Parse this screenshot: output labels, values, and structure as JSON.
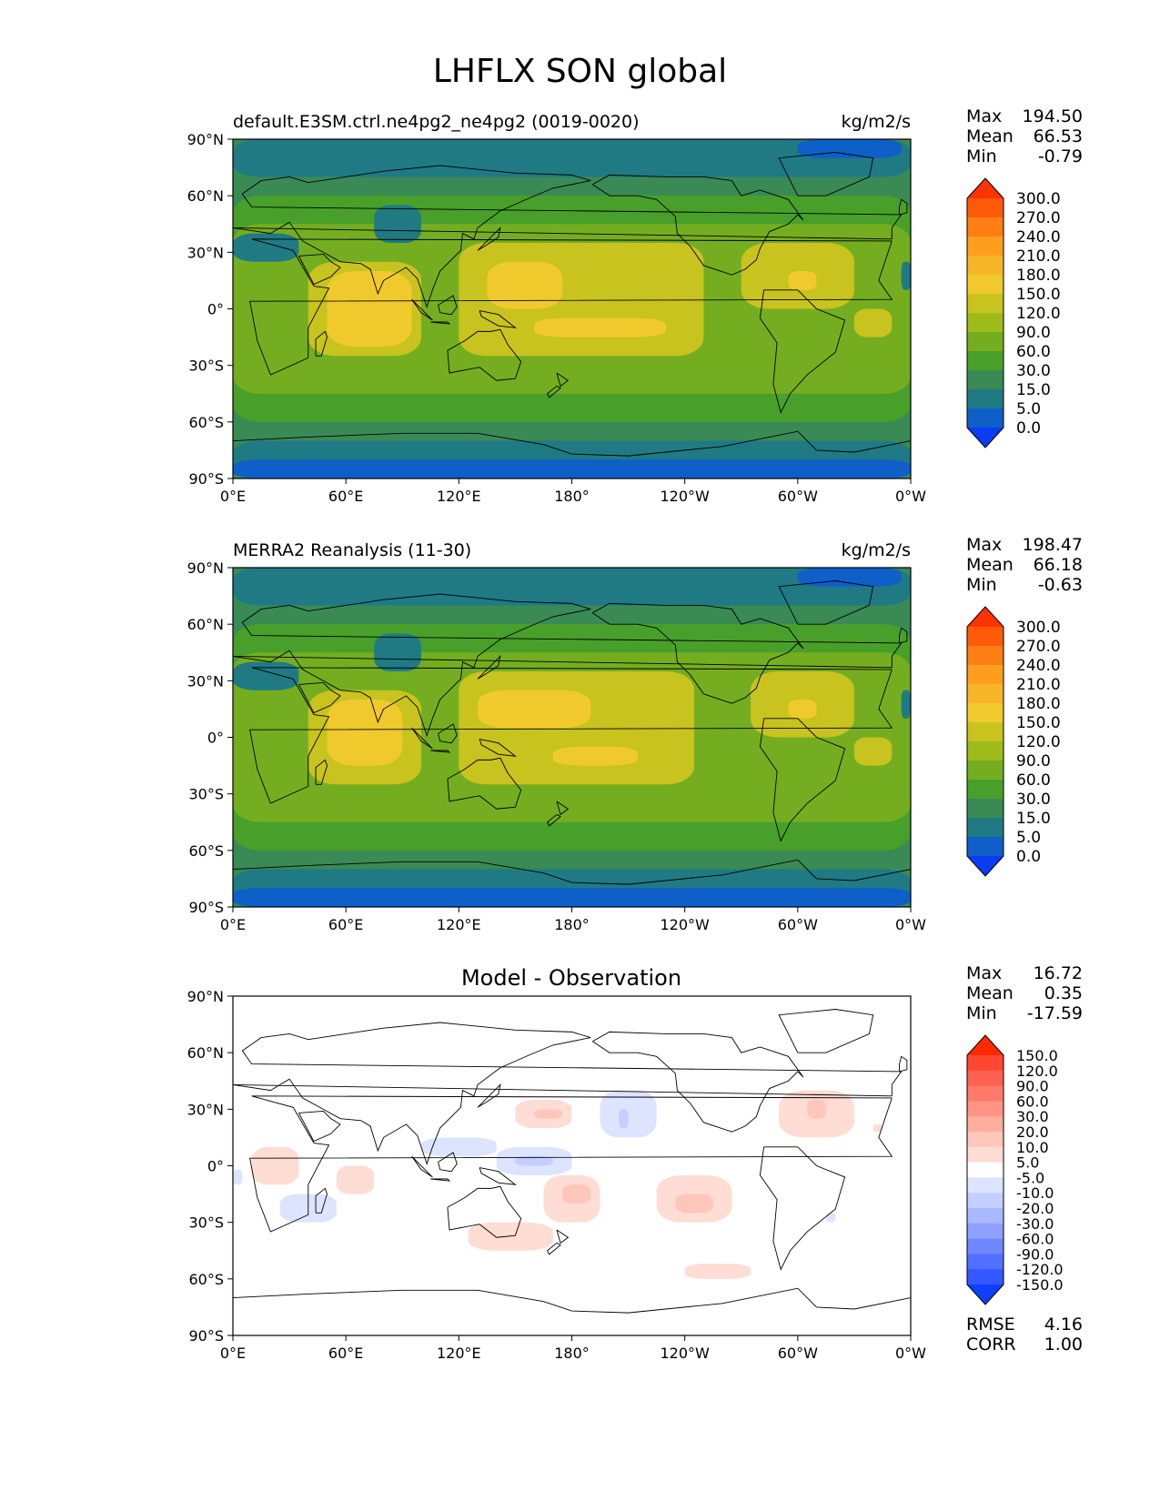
{
  "title": "LHFLX SON global",
  "lon_ticks": [
    "0°E",
    "60°E",
    "120°E",
    "180°",
    "120°W",
    "60°W",
    "0°W"
  ],
  "lat_ticks": [
    "90°N",
    "60°N",
    "30°N",
    "0°",
    "30°S",
    "60°S",
    "90°S"
  ],
  "panels": [
    {
      "title": "default.E3SM.ctrl.ne4pg2_ne4pg2 (0019-0020)",
      "units": "kg/m2/s",
      "stats": {
        "max_label": "Max",
        "max": "194.50",
        "mean_label": "Mean",
        "mean": "66.53",
        "min_label": "Min",
        "min": "-0.79"
      },
      "colorbar": {
        "levels": [
          "300.0",
          "270.0",
          "240.0",
          "210.0",
          "180.0",
          "150.0",
          "120.0",
          "90.0",
          "60.0",
          "30.0",
          "15.0",
          "5.0",
          "0.0"
        ],
        "colors": [
          "#ff3300",
          "#ff5a0a",
          "#ff7f14",
          "#ff9e1e",
          "#f7b52a",
          "#f0ca2c",
          "#c8c31e",
          "#9fbb1a",
          "#74ae20",
          "#48a02a",
          "#3a8a55",
          "#1f7a84",
          "#0e5fc8",
          "#0a3cf5"
        ]
      },
      "field": "clim_model"
    },
    {
      "title": "MERRA2 Reanalysis (11-30)",
      "units": "kg/m2/s",
      "stats": {
        "max_label": "Max",
        "max": "198.47",
        "mean_label": "Mean",
        "mean": "66.18",
        "min_label": "Min",
        "min": "-0.63"
      },
      "colorbar": {
        "levels": [
          "300.0",
          "270.0",
          "240.0",
          "210.0",
          "180.0",
          "150.0",
          "120.0",
          "90.0",
          "60.0",
          "30.0",
          "15.0",
          "5.0",
          "0.0"
        ],
        "colors": [
          "#ff3300",
          "#ff5a0a",
          "#ff7f14",
          "#ff9e1e",
          "#f7b52a",
          "#f0ca2c",
          "#c8c31e",
          "#9fbb1a",
          "#74ae20",
          "#48a02a",
          "#3a8a55",
          "#1f7a84",
          "#0e5fc8",
          "#0a3cf5"
        ]
      },
      "field": "clim_obs"
    },
    {
      "title": "Model - Observation",
      "units": "",
      "stats": {
        "max_label": "Max",
        "max": "16.72",
        "mean_label": "Mean",
        "mean": "0.35",
        "min_label": "Min",
        "min": "-17.59"
      },
      "extra_stats": {
        "rmse_label": "RMSE",
        "rmse": "4.16",
        "corr_label": "CORR",
        "corr": "1.00"
      },
      "colorbar": {
        "levels": [
          "150.0",
          "120.0",
          "90.0",
          "60.0",
          "30.0",
          "20.0",
          "10.0",
          "5.0",
          "-5.0",
          "-10.0",
          "-20.0",
          "-30.0",
          "-60.0",
          "-90.0",
          "-120.0",
          "-150.0"
        ],
        "colors": [
          "#ff2a00",
          "#ff4630",
          "#ff6150",
          "#ff7a6a",
          "#ff9484",
          "#ffad9f",
          "#ffc6bb",
          "#ffdcd4",
          "#ffffff",
          "#dde4ff",
          "#c4ceff",
          "#aab8ff",
          "#8da0ff",
          "#7088ff",
          "#5270ff",
          "#3358ff",
          "#1040ff"
        ]
      },
      "field": "diff"
    }
  ],
  "map_data": {
    "clim_model": [
      {
        "lon": [
          0,
          360
        ],
        "lat": [
          -90,
          90
        ],
        "value": "15.0"
      },
      {
        "lon": [
          0,
          360
        ],
        "lat": [
          -60,
          60
        ],
        "value": "30.0"
      },
      {
        "lon": [
          0,
          360
        ],
        "lat": [
          -45,
          45
        ],
        "value": "60.0"
      },
      {
        "lon": [
          40,
          100
        ],
        "lat": [
          -25,
          25
        ],
        "value": "120.0"
      },
      {
        "lon": [
          50,
          95
        ],
        "lat": [
          -20,
          20
        ],
        "value": "150.0"
      },
      {
        "lon": [
          120,
          250
        ],
        "lat": [
          -25,
          35
        ],
        "value": "120.0"
      },
      {
        "lon": [
          135,
          175
        ],
        "lat": [
          0,
          25
        ],
        "value": "150.0"
      },
      {
        "lon": [
          160,
          230
        ],
        "lat": [
          -15,
          -5
        ],
        "value": "150.0"
      },
      {
        "lon": [
          270,
          330
        ],
        "lat": [
          0,
          35
        ],
        "value": "120.0"
      },
      {
        "lon": [
          295,
          310
        ],
        "lat": [
          10,
          20
        ],
        "value": "150.0"
      },
      {
        "lon": [
          330,
          350
        ],
        "lat": [
          -15,
          0
        ],
        "value": "120.0"
      },
      {
        "lon": [
          0,
          35
        ],
        "lat": [
          25,
          40
        ],
        "value": "5.0"
      },
      {
        "lon": [
          75,
          100
        ],
        "lat": [
          35,
          55
        ],
        "value": "5.0"
      },
      {
        "lon": [
          0,
          360
        ],
        "lat": [
          70,
          90
        ],
        "value": "5.0"
      },
      {
        "lon": [
          0,
          360
        ],
        "lat": [
          -90,
          -70
        ],
        "value": "5.0"
      },
      {
        "lon": [
          0,
          360
        ],
        "lat": [
          -90,
          -80
        ],
        "value": "0.0"
      },
      {
        "lon": [
          300,
          355
        ],
        "lat": [
          80,
          90
        ],
        "value": "0.0"
      },
      {
        "lon": [
          355,
          360
        ],
        "lat": [
          10,
          25
        ],
        "value": "5.0"
      }
    ],
    "clim_obs": [
      {
        "lon": [
          0,
          360
        ],
        "lat": [
          -90,
          90
        ],
        "value": "15.0"
      },
      {
        "lon": [
          0,
          360
        ],
        "lat": [
          -60,
          60
        ],
        "value": "30.0"
      },
      {
        "lon": [
          0,
          360
        ],
        "lat": [
          -45,
          45
        ],
        "value": "60.0"
      },
      {
        "lon": [
          40,
          100
        ],
        "lat": [
          -25,
          25
        ],
        "value": "120.0"
      },
      {
        "lon": [
          50,
          90
        ],
        "lat": [
          -15,
          20
        ],
        "value": "150.0"
      },
      {
        "lon": [
          120,
          245
        ],
        "lat": [
          -25,
          35
        ],
        "value": "120.0"
      },
      {
        "lon": [
          130,
          190
        ],
        "lat": [
          5,
          25
        ],
        "value": "150.0"
      },
      {
        "lon": [
          170,
          215
        ],
        "lat": [
          -15,
          -5
        ],
        "value": "150.0"
      },
      {
        "lon": [
          275,
          330
        ],
        "lat": [
          0,
          35
        ],
        "value": "120.0"
      },
      {
        "lon": [
          295,
          310
        ],
        "lat": [
          10,
          20
        ],
        "value": "150.0"
      },
      {
        "lon": [
          330,
          350
        ],
        "lat": [
          -15,
          0
        ],
        "value": "120.0"
      },
      {
        "lon": [
          0,
          35
        ],
        "lat": [
          25,
          40
        ],
        "value": "5.0"
      },
      {
        "lon": [
          75,
          100
        ],
        "lat": [
          35,
          55
        ],
        "value": "5.0"
      },
      {
        "lon": [
          0,
          360
        ],
        "lat": [
          70,
          90
        ],
        "value": "5.0"
      },
      {
        "lon": [
          0,
          360
        ],
        "lat": [
          -90,
          -70
        ],
        "value": "5.0"
      },
      {
        "lon": [
          0,
          360
        ],
        "lat": [
          -90,
          -80
        ],
        "value": "0.0"
      },
      {
        "lon": [
          300,
          355
        ],
        "lat": [
          80,
          90
        ],
        "value": "0.0"
      },
      {
        "lon": [
          355,
          360
        ],
        "lat": [
          10,
          25
        ],
        "value": "5.0"
      }
    ],
    "diff": [
      {
        "lon": [
          10,
          35
        ],
        "lat": [
          -10,
          10
        ],
        "value": "5.0"
      },
      {
        "lon": [
          55,
          75
        ],
        "lat": [
          -15,
          0
        ],
        "value": "5.0"
      },
      {
        "lon": [
          25,
          55
        ],
        "lat": [
          -30,
          -15
        ],
        "value": "-10.0"
      },
      {
        "lon": [
          0,
          5
        ],
        "lat": [
          -10,
          -2
        ],
        "value": "-10.0"
      },
      {
        "lon": [
          100,
          140
        ],
        "lat": [
          5,
          15
        ],
        "value": "-10.0"
      },
      {
        "lon": [
          140,
          180
        ],
        "lat": [
          -5,
          10
        ],
        "value": "-10.0"
      },
      {
        "lon": [
          150,
          170
        ],
        "lat": [
          0,
          5
        ],
        "value": "-20.0"
      },
      {
        "lon": [
          150,
          180
        ],
        "lat": [
          20,
          35
        ],
        "value": "5.0"
      },
      {
        "lon": [
          160,
          175
        ],
        "lat": [
          25,
          30
        ],
        "value": "10.0"
      },
      {
        "lon": [
          195,
          225
        ],
        "lat": [
          15,
          40
        ],
        "value": "-10.0"
      },
      {
        "lon": [
          205,
          210
        ],
        "lat": [
          20,
          30
        ],
        "value": "-20.0"
      },
      {
        "lon": [
          165,
          195
        ],
        "lat": [
          -30,
          -5
        ],
        "value": "5.0"
      },
      {
        "lon": [
          175,
          190
        ],
        "lat": [
          -20,
          -10
        ],
        "value": "10.0"
      },
      {
        "lon": [
          225,
          265
        ],
        "lat": [
          -30,
          -5
        ],
        "value": "5.0"
      },
      {
        "lon": [
          235,
          255
        ],
        "lat": [
          -25,
          -15
        ],
        "value": "10.0"
      },
      {
        "lon": [
          125,
          170
        ],
        "lat": [
          -45,
          -30
        ],
        "value": "5.0"
      },
      {
        "lon": [
          240,
          275
        ],
        "lat": [
          -60,
          -52
        ],
        "value": "5.0"
      },
      {
        "lon": [
          290,
          330
        ],
        "lat": [
          15,
          40
        ],
        "value": "5.0"
      },
      {
        "lon": [
          305,
          315
        ],
        "lat": [
          25,
          35
        ],
        "value": "10.0"
      },
      {
        "lon": [
          315,
          320
        ],
        "lat": [
          -30,
          -25
        ],
        "value": "-10.0"
      },
      {
        "lon": [
          340,
          345
        ],
        "lat": [
          18,
          22
        ],
        "value": "5.0"
      }
    ]
  }
}
